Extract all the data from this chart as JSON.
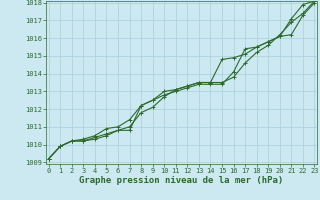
{
  "title": "Graphe pression niveau de la mer (hPa)",
  "background_color": "#cce8f0",
  "line_color": "#2d6a2d",
  "grid_color": "#aacfdf",
  "x_values": [
    0,
    1,
    2,
    3,
    4,
    5,
    6,
    7,
    8,
    9,
    10,
    11,
    12,
    13,
    14,
    15,
    16,
    17,
    18,
    19,
    20,
    21,
    22,
    23
  ],
  "series1": [
    1009.2,
    1009.9,
    1010.2,
    1010.2,
    1010.3,
    1010.5,
    1010.8,
    1010.8,
    1012.2,
    1012.5,
    1012.8,
    1013.0,
    1013.2,
    1013.4,
    1013.4,
    1013.4,
    1014.1,
    1015.4,
    1015.5,
    1015.8,
    1016.1,
    1017.1,
    1017.9,
    1018.1
  ],
  "series2": [
    1009.2,
    1009.9,
    1010.2,
    1010.2,
    1010.4,
    1010.6,
    1010.8,
    1011.0,
    1011.8,
    1012.1,
    1012.7,
    1013.1,
    1013.3,
    1013.5,
    1013.5,
    1014.8,
    1014.9,
    1015.1,
    1015.5,
    1015.8,
    1016.1,
    1016.2,
    1017.3,
    1018.0
  ],
  "series3": [
    1009.2,
    1009.9,
    1010.2,
    1010.3,
    1010.5,
    1010.9,
    1011.0,
    1011.4,
    1012.2,
    1012.5,
    1013.0,
    1013.1,
    1013.3,
    1013.5,
    1013.5,
    1013.5,
    1013.8,
    1014.6,
    1015.2,
    1015.6,
    1016.2,
    1016.9,
    1017.4,
    1018.1
  ],
  "ylim": [
    1009,
    1018
  ],
  "yticks": [
    1009,
    1010,
    1011,
    1012,
    1013,
    1014,
    1015,
    1016,
    1017,
    1018
  ],
  "xlim": [
    0,
    23
  ],
  "xticks": [
    0,
    1,
    2,
    3,
    4,
    5,
    6,
    7,
    8,
    9,
    10,
    11,
    12,
    13,
    14,
    15,
    16,
    17,
    18,
    19,
    20,
    21,
    22,
    23
  ],
  "marker": "+",
  "markersize": 3.5,
  "linewidth": 0.8,
  "title_fontsize": 6.5,
  "tick_fontsize": 5.0
}
